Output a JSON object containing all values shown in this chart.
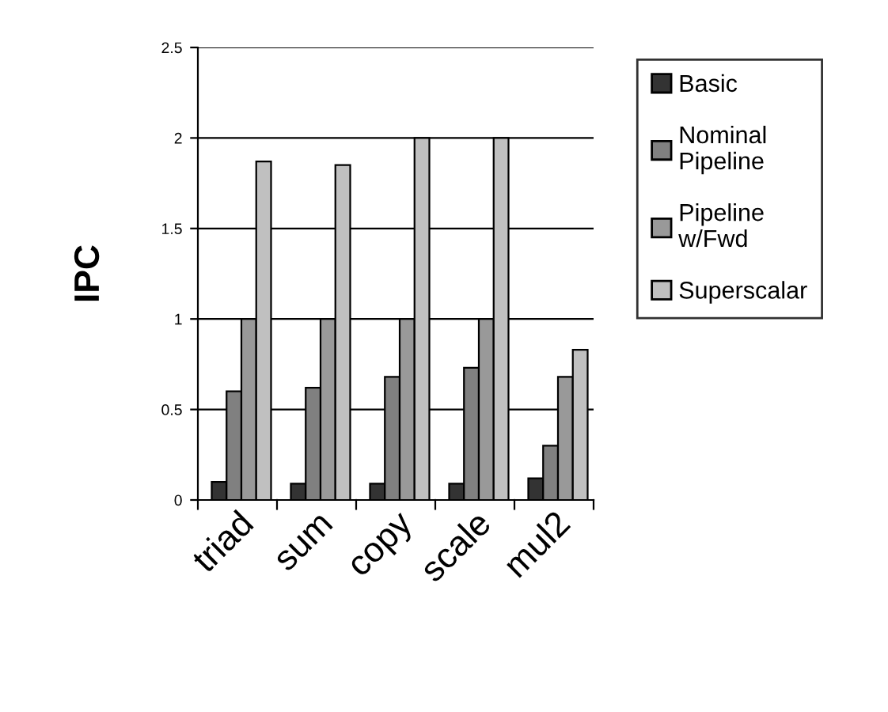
{
  "chart_data": {
    "type": "bar",
    "ylabel": "IPC",
    "categories": [
      "triad",
      "sum",
      "copy",
      "scale",
      "mul2"
    ],
    "series": [
      {
        "name": "Basic",
        "color": "#333333",
        "values": [
          0.1,
          0.09,
          0.09,
          0.09,
          0.12
        ]
      },
      {
        "name": "Nominal Pipeline",
        "color": "#808080",
        "values": [
          0.6,
          0.62,
          0.68,
          0.73,
          0.3
        ]
      },
      {
        "name": "Pipeline w/Fwd",
        "color": "#999999",
        "values": [
          1,
          1,
          1,
          1,
          0.68
        ]
      },
      {
        "name": "Superscalar",
        "color": "#c0c0c0",
        "values": [
          1.87,
          1.85,
          2,
          2,
          0.83
        ]
      }
    ],
    "ylim": [
      0,
      2.5
    ],
    "yticks": [
      0,
      0.5,
      1,
      1.5,
      2,
      2.5
    ],
    "grid": "y",
    "legend": "right"
  }
}
